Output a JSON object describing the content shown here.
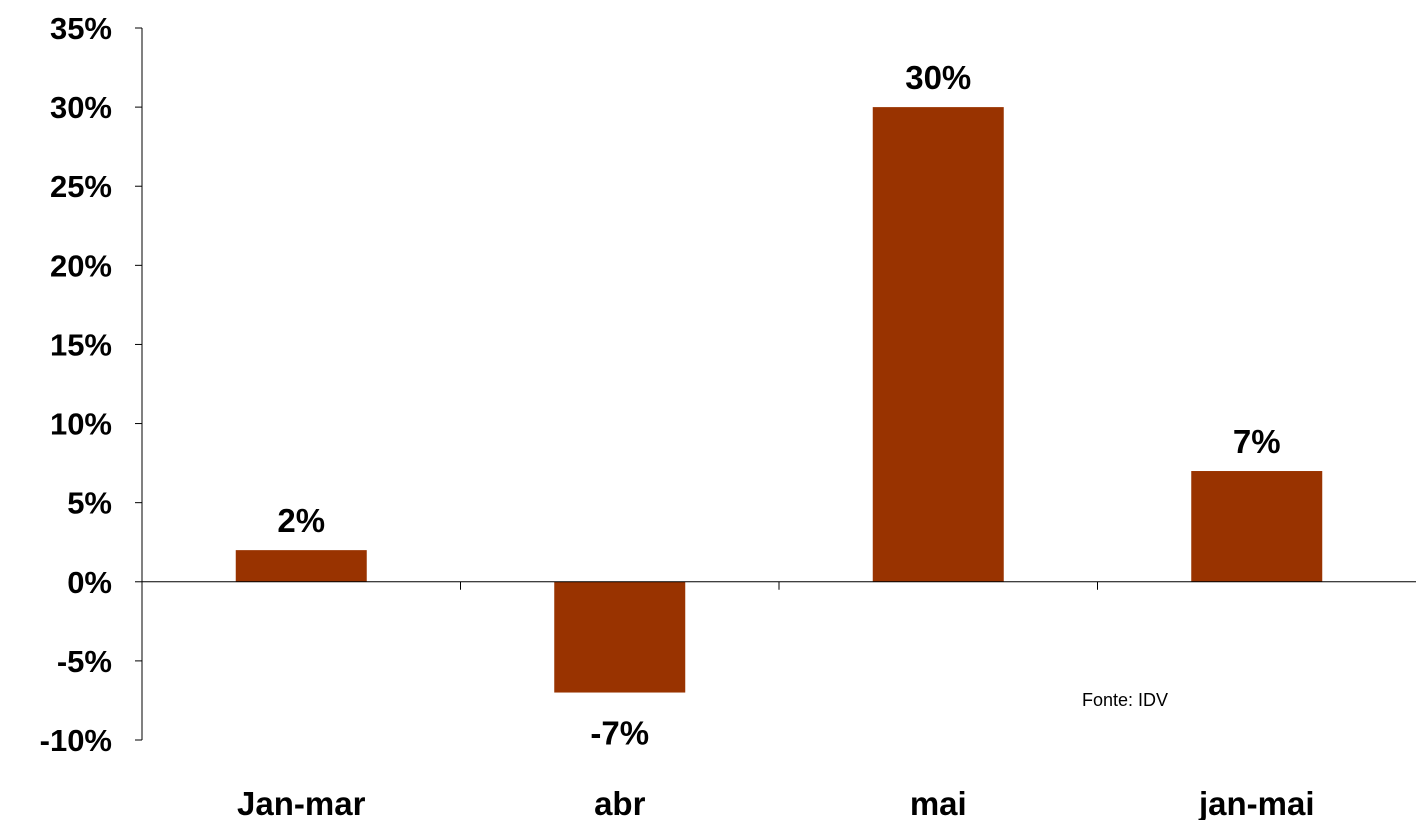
{
  "chart_data": {
    "type": "bar",
    "categories": [
      "Jan-mar",
      "abr",
      "mai",
      "jan-mai"
    ],
    "values": [
      2,
      -7,
      30,
      7
    ],
    "data_labels": [
      "2%",
      "-7%",
      "30%",
      "7%"
    ],
    "ylim": [
      -10,
      35
    ],
    "y_ticks": [
      -10,
      -5,
      0,
      5,
      10,
      15,
      20,
      25,
      30,
      35
    ],
    "y_tick_labels": [
      "-10%",
      "-5%",
      "0%",
      "5%",
      "10%",
      "15%",
      "20%",
      "25%",
      "30%",
      "35%"
    ],
    "bar_color": "#993300",
    "grid": false,
    "source_note": "Fonte: IDV"
  }
}
